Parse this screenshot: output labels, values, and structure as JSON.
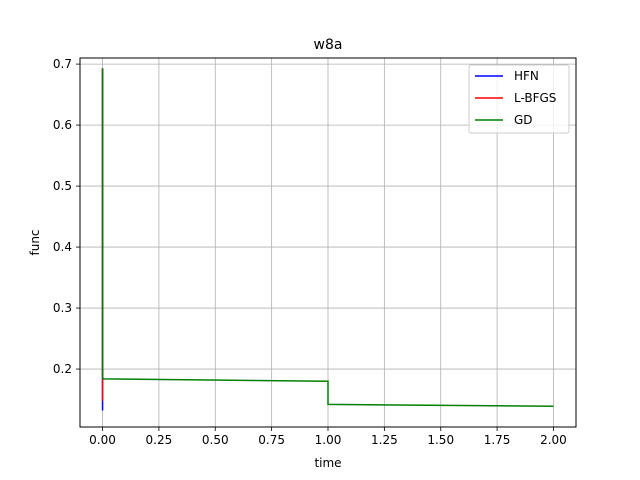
{
  "chart_data": {
    "type": "line",
    "title": "w8a",
    "xlabel": "time",
    "ylabel": "func",
    "xlim": [
      -0.1,
      2.1
    ],
    "ylim": [
      0.105,
      0.71
    ],
    "xticks": [
      0.0,
      0.25,
      0.5,
      0.75,
      1.0,
      1.25,
      1.5,
      1.75,
      2.0
    ],
    "xtick_labels": [
      "0.00",
      "0.25",
      "0.50",
      "0.75",
      "1.00",
      "1.25",
      "1.50",
      "1.75",
      "2.00"
    ],
    "yticks": [
      0.2,
      0.3,
      0.4,
      0.5,
      0.6,
      0.7
    ],
    "ytick_labels": [
      "0.2",
      "0.3",
      "0.4",
      "0.5",
      "0.6",
      "0.7"
    ],
    "grid": true,
    "legend_position": "top-right",
    "series": [
      {
        "name": "HFN",
        "color": "#0000ff",
        "x": [
          0.0,
          0.0,
          0.0,
          0.0
        ],
        "y": [
          0.693,
          0.25,
          0.16,
          0.132
        ]
      },
      {
        "name": "L-BFGS",
        "color": "#ff0000",
        "x": [
          0.0,
          0.0,
          0.0,
          0.0
        ],
        "y": [
          0.693,
          0.3,
          0.2,
          0.148
        ]
      },
      {
        "name": "GD",
        "color": "#008000",
        "x": [
          0.0,
          0.0,
          0.005,
          1.0,
          1.0,
          2.0
        ],
        "y": [
          0.693,
          0.185,
          0.184,
          0.18,
          0.142,
          0.139
        ]
      }
    ]
  }
}
